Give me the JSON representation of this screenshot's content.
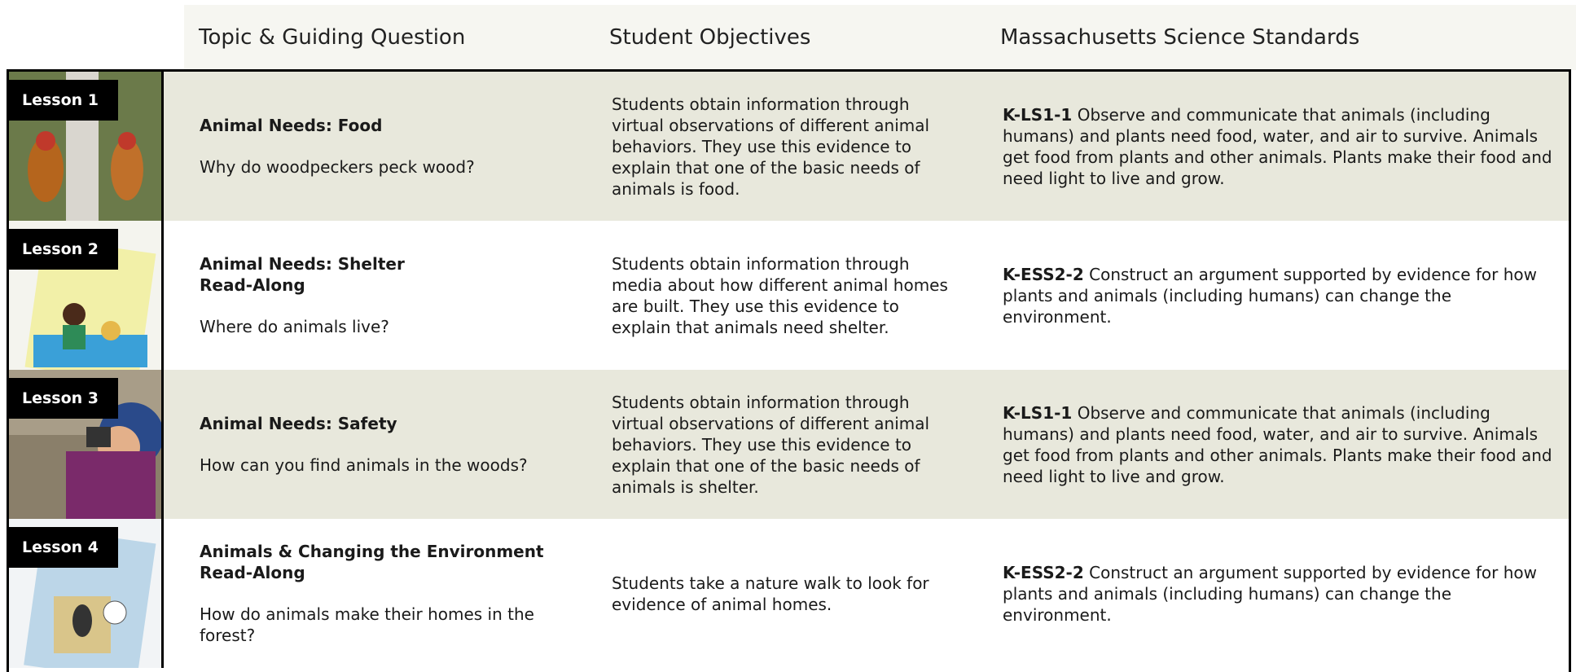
{
  "header": {
    "columns": [
      "Topic & Guiding Question",
      "Student Objectives",
      "Massachusetts Science Standards"
    ]
  },
  "rows": [
    {
      "lesson": "Lesson 1",
      "title": [
        "Animal Needs: Food"
      ],
      "question": "Why do woodpeckers peck wood?",
      "objectives": "Students obtain information through virtual observations of different animal behaviors. They use this evidence to explain that one of the basic needs of animals is food.",
      "standard_code": "K-LS1-1",
      "standard_text": "Observe and communicate that animals (including humans) and plants need food, water, and air to survive. Animals get food from plants and other animals. Plants make their food and need light to live and grow."
    },
    {
      "lesson": "Lesson 2",
      "title": [
        "Animal Needs: Shelter",
        "Read-Along"
      ],
      "question": "Where do animals live?",
      "objectives": "Students obtain information through media about how different animal homes are built. They use this evidence to explain that animals need shelter.",
      "standard_code": "K-ESS2-2",
      "standard_text": "Construct an argument supported by evidence for how plants and animals (including humans) can change the environment."
    },
    {
      "lesson": "Lesson 3",
      "title": [
        "Animal Needs: Safety"
      ],
      "question": "How can you find animals in the woods?",
      "objectives": "Students obtain information through virtual observations of different animal behaviors. They use this evidence to explain that one of the basic needs of animals is shelter.",
      "standard_code": "K-LS1-1",
      "standard_text": "Observe and communicate that animals (including humans) and plants need food, water, and air to survive. Animals get food from plants and other animals. Plants make their food and need light to live and grow."
    },
    {
      "lesson": "Lesson 4",
      "title": [
        "Animals & Changing the Environment",
        "Read-Along"
      ],
      "question": "How do animals make their homes in the forest?",
      "objectives": "Students take a nature walk to look for evidence of animal homes.",
      "standard_code": "K-ESS2-2",
      "standard_text": "Construct an argument supported by evidence for how plants and animals (including humans) can change the environment."
    }
  ]
}
